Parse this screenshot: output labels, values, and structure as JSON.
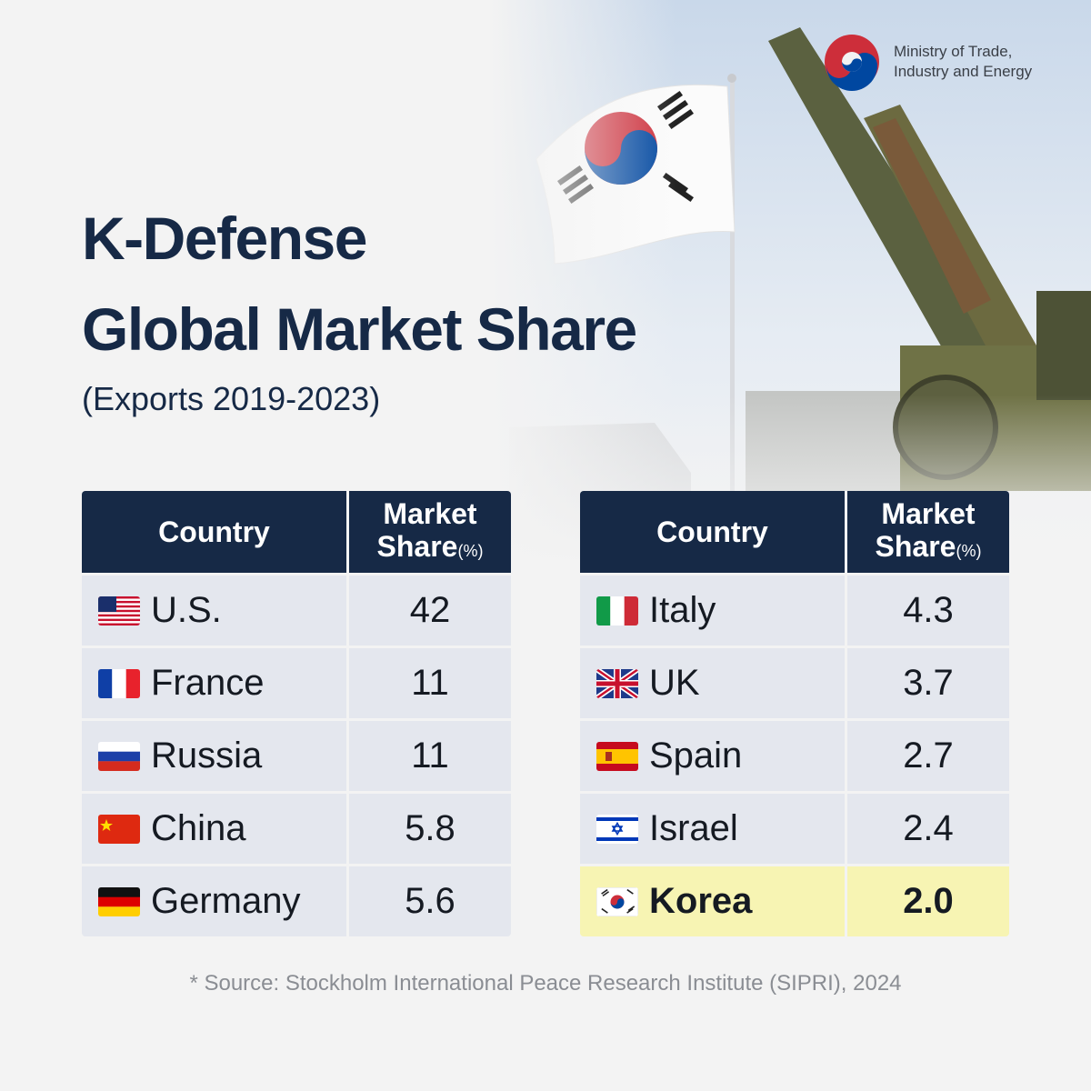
{
  "logo": {
    "line1": "Ministry of Trade,",
    "line2": "Industry and Energy",
    "icon": "taegeuk-emblem-icon"
  },
  "title": {
    "line1": "K-Defense",
    "line2": "Global Market Share",
    "subtitle": "(Exports 2019-2023)"
  },
  "headers": {
    "country": "Country",
    "share_line1": "Market",
    "share_line2": "Share",
    "share_unit": "(%)"
  },
  "chart_data": {
    "type": "table",
    "title": "K-Defense Global Market Share",
    "subtitle": "(Exports 2019-2023)",
    "columns": [
      "Country",
      "Market Share(%)"
    ],
    "rows": [
      {
        "country": "U.S.",
        "share": "42",
        "flag": "us-flag-icon"
      },
      {
        "country": "France",
        "share": "11",
        "flag": "france-flag-icon"
      },
      {
        "country": "Russia",
        "share": "11",
        "flag": "russia-flag-icon"
      },
      {
        "country": "China",
        "share": "5.8",
        "flag": "china-flag-icon"
      },
      {
        "country": "Germany",
        "share": "5.6",
        "flag": "germany-flag-icon"
      },
      {
        "country": "Italy",
        "share": "4.3",
        "flag": "italy-flag-icon"
      },
      {
        "country": "UK",
        "share": "3.7",
        "flag": "uk-flag-icon"
      },
      {
        "country": "Spain",
        "share": "2.7",
        "flag": "spain-flag-icon"
      },
      {
        "country": "Israel",
        "share": "2.4",
        "flag": "israel-flag-icon"
      },
      {
        "country": "Korea",
        "share": "2.0",
        "flag": "korea-flag-icon",
        "highlighted": true
      }
    ]
  },
  "colors": {
    "navy": "#162946",
    "row_bg": "#e4e7ee",
    "highlight_bg": "#f7f4b3"
  },
  "source": "* Source: Stockholm International Peace Research Institute (SIPRI), 2024"
}
